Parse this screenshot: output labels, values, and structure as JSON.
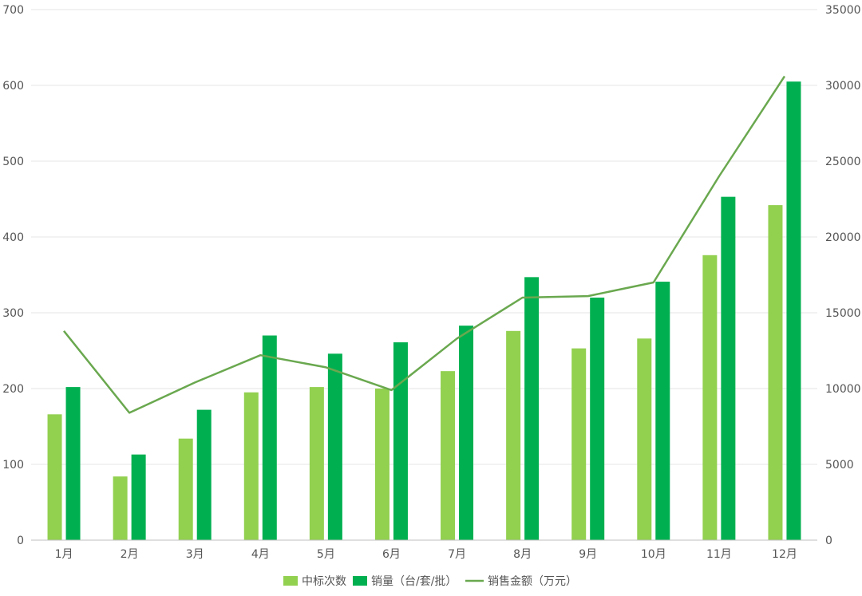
{
  "chart_data": {
    "type": "bar",
    "categories": [
      "1月",
      "2月",
      "3月",
      "4月",
      "5月",
      "6月",
      "7月",
      "8月",
      "9月",
      "10月",
      "11月",
      "12月"
    ],
    "series": [
      {
        "name": "中标次数",
        "type": "bar",
        "axis": "left",
        "color": "#92d050",
        "values": [
          166,
          84,
          134,
          195,
          202,
          200,
          223,
          276,
          253,
          266,
          376,
          442
        ]
      },
      {
        "name": "销量（台/套/批）",
        "type": "bar",
        "axis": "left",
        "color": "#00b050",
        "values": [
          202,
          113,
          172,
          270,
          246,
          261,
          283,
          347,
          320,
          341,
          453,
          605
        ]
      },
      {
        "name": "销售金额（万元）",
        "type": "line",
        "axis": "right",
        "color": "#6aa84f",
        "values": [
          13800,
          8400,
          10400,
          12200,
          11400,
          9900,
          13300,
          16000,
          16100,
          17000,
          24000,
          30600
        ]
      }
    ],
    "ylim_left": [
      0,
      700
    ],
    "ylim_right": [
      0,
      35000
    ],
    "yticks_left": [
      "0",
      "100",
      "200",
      "300",
      "400",
      "500",
      "600",
      "700"
    ],
    "yticks_right": [
      "0",
      "5000",
      "10000",
      "15000",
      "20000",
      "25000",
      "30000",
      "35000"
    ],
    "grid": true,
    "legend_position": "bottom"
  }
}
